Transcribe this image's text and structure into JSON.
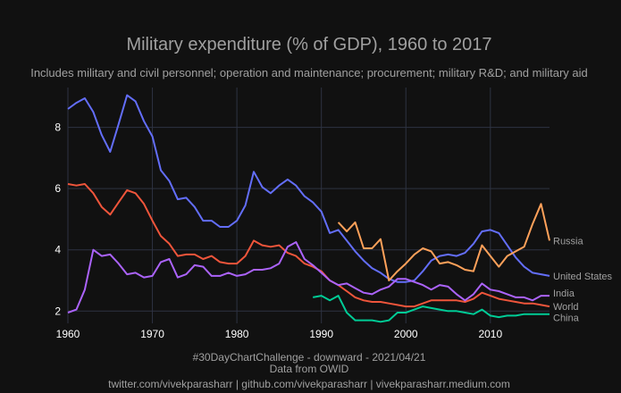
{
  "chart_data": {
    "type": "line",
    "title": "Military expenditure (% of GDP), 1960 to 2017",
    "subtitle": "Includes military and civil personnel; operation and maintenance; procurement; military R&D; and military aid",
    "xlabel": "",
    "ylabel": "",
    "xlim": [
      1960,
      2017
    ],
    "ylim": [
      1.6,
      9.3
    ],
    "xticks": [
      1960,
      1970,
      1980,
      1990,
      2000,
      2010
    ],
    "yticks": [
      2,
      4,
      6,
      8
    ],
    "grid": true,
    "legend": "end-of-line labels",
    "colors": {
      "background": "#111111",
      "grid": "#2e3342",
      "United States": "#636efa",
      "World": "#ef553b",
      "India": "#ab63fa",
      "China": "#00cc96",
      "Russia": "#ffa15a"
    },
    "series": [
      {
        "name": "United States",
        "x": [
          1960,
          1961,
          1962,
          1963,
          1964,
          1965,
          1966,
          1967,
          1968,
          1969,
          1970,
          1971,
          1972,
          1973,
          1974,
          1975,
          1976,
          1977,
          1978,
          1979,
          1980,
          1981,
          1982,
          1983,
          1984,
          1985,
          1986,
          1987,
          1988,
          1989,
          1990,
          1991,
          1992,
          1993,
          1994,
          1995,
          1996,
          1997,
          1998,
          1999,
          2000,
          2001,
          2002,
          2003,
          2004,
          2005,
          2006,
          2007,
          2008,
          2009,
          2010,
          2011,
          2012,
          2013,
          2014,
          2015,
          2016,
          2017
        ],
        "values": [
          8.6,
          8.8,
          8.95,
          8.5,
          7.75,
          7.2,
          8.1,
          9.05,
          8.85,
          8.2,
          7.7,
          6.6,
          6.25,
          5.65,
          5.7,
          5.4,
          4.95,
          4.95,
          4.75,
          4.75,
          4.95,
          5.45,
          6.55,
          6.05,
          5.85,
          6.1,
          6.3,
          6.1,
          5.75,
          5.55,
          5.25,
          4.55,
          4.65,
          4.3,
          3.95,
          3.65,
          3.4,
          3.25,
          3.05,
          2.95,
          2.95,
          3.0,
          3.3,
          3.65,
          3.8,
          3.85,
          3.8,
          3.9,
          4.2,
          4.6,
          4.65,
          4.55,
          4.15,
          3.75,
          3.45,
          3.25,
          3.2,
          3.15
        ]
      },
      {
        "name": "World",
        "x": [
          1960,
          1961,
          1962,
          1963,
          1964,
          1965,
          1966,
          1967,
          1968,
          1969,
          1970,
          1971,
          1972,
          1973,
          1974,
          1975,
          1976,
          1977,
          1978,
          1979,
          1980,
          1981,
          1982,
          1983,
          1984,
          1985,
          1986,
          1987,
          1988,
          1989,
          1990,
          1991,
          1992,
          1993,
          1994,
          1995,
          1996,
          1997,
          1998,
          1999,
          2000,
          2001,
          2002,
          2003,
          2004,
          2005,
          2006,
          2007,
          2008,
          2009,
          2010,
          2011,
          2012,
          2013,
          2014,
          2015,
          2016,
          2017
        ],
        "values": [
          6.15,
          6.1,
          6.15,
          5.85,
          5.4,
          5.15,
          5.55,
          5.95,
          5.85,
          5.5,
          4.95,
          4.45,
          4.2,
          3.8,
          3.85,
          3.85,
          3.7,
          3.8,
          3.6,
          3.55,
          3.55,
          3.8,
          4.3,
          4.15,
          4.1,
          4.15,
          3.9,
          3.8,
          3.55,
          3.45,
          3.3,
          3.0,
          2.85,
          2.65,
          2.45,
          2.35,
          2.3,
          2.3,
          2.25,
          2.2,
          2.15,
          2.15,
          2.25,
          2.35,
          2.35,
          2.35,
          2.35,
          2.3,
          2.4,
          2.6,
          2.5,
          2.4,
          2.35,
          2.3,
          2.25,
          2.25,
          2.2,
          2.15
        ]
      },
      {
        "name": "India",
        "x": [
          1960,
          1961,
          1962,
          1963,
          1964,
          1965,
          1966,
          1967,
          1968,
          1969,
          1970,
          1971,
          1972,
          1973,
          1974,
          1975,
          1976,
          1977,
          1978,
          1979,
          1980,
          1981,
          1982,
          1983,
          1984,
          1985,
          1986,
          1987,
          1988,
          1989,
          1990,
          1991,
          1992,
          1993,
          1994,
          1995,
          1996,
          1997,
          1998,
          1999,
          2000,
          2001,
          2002,
          2003,
          2004,
          2005,
          2006,
          2007,
          2008,
          2009,
          2010,
          2011,
          2012,
          2013,
          2014,
          2015,
          2016,
          2017
        ],
        "values": [
          1.95,
          2.05,
          2.7,
          4.0,
          3.8,
          3.85,
          3.55,
          3.2,
          3.25,
          3.1,
          3.15,
          3.6,
          3.7,
          3.1,
          3.2,
          3.5,
          3.45,
          3.15,
          3.15,
          3.25,
          3.15,
          3.2,
          3.35,
          3.35,
          3.4,
          3.55,
          4.1,
          4.25,
          3.7,
          3.5,
          3.25,
          3.0,
          2.85,
          2.9,
          2.75,
          2.6,
          2.55,
          2.7,
          2.8,
          3.05,
          3.05,
          2.95,
          2.85,
          2.7,
          2.85,
          2.8,
          2.55,
          2.35,
          2.55,
          2.9,
          2.7,
          2.65,
          2.55,
          2.45,
          2.45,
          2.35,
          2.5,
          2.5
        ]
      },
      {
        "name": "China",
        "x": [
          1989,
          1990,
          1991,
          1992,
          1993,
          1994,
          1995,
          1996,
          1997,
          1998,
          1999,
          2000,
          2001,
          2002,
          2003,
          2004,
          2005,
          2006,
          2007,
          2008,
          2009,
          2010,
          2011,
          2012,
          2013,
          2014,
          2015,
          2016,
          2017
        ],
        "values": [
          2.45,
          2.5,
          2.35,
          2.5,
          1.95,
          1.7,
          1.7,
          1.7,
          1.65,
          1.7,
          1.95,
          1.95,
          2.05,
          2.15,
          2.1,
          2.05,
          2.0,
          2.0,
          1.95,
          1.9,
          2.05,
          1.85,
          1.8,
          1.85,
          1.85,
          1.9,
          1.9,
          1.9,
          1.9
        ]
      },
      {
        "name": "Russia",
        "x": [
          1992,
          1993,
          1994,
          1995,
          1996,
          1997,
          1998,
          1999,
          2000,
          2001,
          2002,
          2003,
          2004,
          2005,
          2006,
          2007,
          2008,
          2009,
          2010,
          2011,
          2012,
          2013,
          2014,
          2015,
          2016,
          2017
        ],
        "values": [
          4.9,
          4.6,
          4.9,
          4.05,
          4.05,
          4.35,
          3.0,
          3.3,
          3.55,
          3.85,
          4.05,
          3.95,
          3.55,
          3.6,
          3.5,
          3.35,
          3.3,
          4.15,
          3.8,
          3.45,
          3.8,
          3.95,
          4.1,
          4.85,
          5.5,
          4.3
        ]
      }
    ],
    "caption": [
      "#30DayChartChallenge - downward - 2021/04/21",
      "Data from OWID",
      "twitter.com/vivekparasharr | github.com/vivekparasharr | vivekparasharr.medium.com"
    ]
  }
}
